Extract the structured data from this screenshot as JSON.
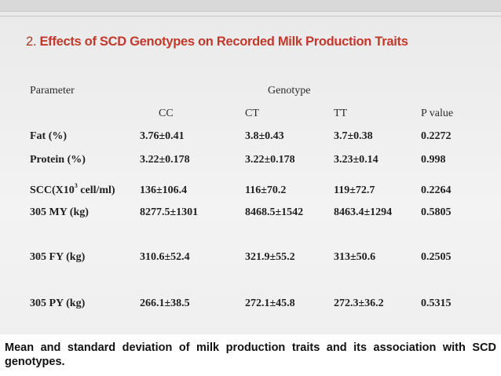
{
  "title": {
    "number": "2.",
    "text": "Effects of SCD Genotypes on Recorded Milk Production Traits"
  },
  "table": {
    "parameter_header": "Parameter",
    "genotype_header": "Genotype",
    "columns": [
      "CC",
      "CT",
      "TT",
      "P value"
    ],
    "rows": [
      {
        "param": "Fat  (%)",
        "values": [
          "3.76±0.41",
          "3.8±0.43",
          "3.7±0.38",
          "0.2272"
        ]
      },
      {
        "param": "Protein  (%)",
        "values": [
          "3.22±0.178",
          "3.22±0.178",
          "3.23±0.14",
          "0.998"
        ]
      },
      {
        "param_prefix": "SCC(X10",
        "param_sup": "3",
        "param_suffix": " cell/ml)",
        "values": [
          "136±106.4",
          "116±70.2",
          "119±72.7",
          "0.2264"
        ]
      },
      {
        "param": "305 MY (kg)",
        "values": [
          "8277.5±1301",
          "8468.5±1542",
          "8463.4±1294",
          "0.5805"
        ]
      },
      {
        "param": "305 FY (kg)",
        "values": [
          "310.6±52.4",
          "321.9±55.2",
          "313±50.6",
          "0.2505"
        ]
      },
      {
        "param": "305 PY (kg)",
        "values": [
          "266.1±38.5",
          "272.1±45.8",
          "272.3±36.2",
          "0.5315"
        ]
      }
    ]
  },
  "caption": "Mean and standard deviation of milk production traits and its association with SCD genotypes."
}
